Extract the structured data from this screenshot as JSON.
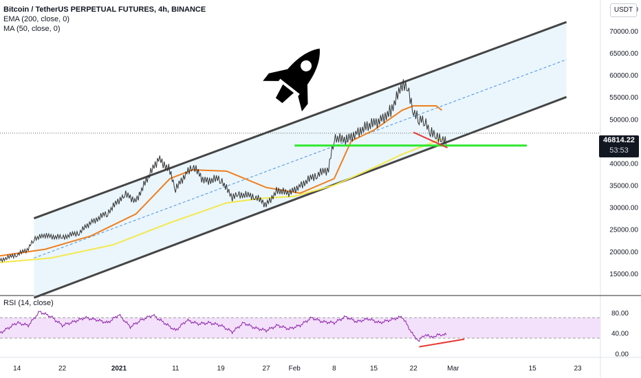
{
  "header": {
    "title": "Bitcoin / TetherUS PERPETUAL FUTURES, 4h, BINANCE",
    "ema": "EMA (200, close, 0)",
    "ma": "MA (50, close, 0)"
  },
  "currency_button": "USDT",
  "last_price": {
    "value": "46814.22",
    "countdown": "53:53"
  },
  "rsi_panel": {
    "label": "RSI (14, close)"
  },
  "icons": {
    "rocket": "rocket-icon"
  },
  "colors": {
    "candle_up": "#26a69a",
    "candle_dark": "#333333",
    "channel": "#454545",
    "channel_fill": "#e3f3fb",
    "ema": "#f4e84a",
    "ma": "#f07e1d",
    "support": "#2ee82e",
    "divergence": "#e53935",
    "rsi_line": "#8e24aa",
    "rsi_band": "#f3e1fb"
  },
  "chart_data": [
    {
      "type": "line",
      "name": "price",
      "ylim": [
        10000,
        77000
      ],
      "yticks": [
        15000,
        20000,
        25000,
        30000,
        35000,
        40000,
        45000,
        50000,
        55000,
        60000,
        65000,
        70000,
        75000
      ],
      "ytick_labels": [
        "15000.00",
        "20000.00",
        "25000.00",
        "30000.00",
        "35000.00",
        "40000.00",
        "45000.00",
        "50000.00",
        "55000.00",
        "60000.00",
        "65000.00",
        "70000.00",
        "75000.00"
      ],
      "x_axis": {
        "start": "2020-12-11",
        "end": "2021-03-27",
        "ticks": [
          {
            "date": "2020-12-14",
            "label": "14",
            "bold": false
          },
          {
            "date": "2020-12-22",
            "label": "22",
            "bold": false
          },
          {
            "date": "2021-01-01",
            "label": "2021",
            "bold": true
          },
          {
            "date": "2021-01-11",
            "label": "11",
            "bold": false
          },
          {
            "date": "2021-01-19",
            "label": "19",
            "bold": false
          },
          {
            "date": "2021-01-27",
            "label": "27",
            "bold": false
          },
          {
            "date": "2021-02-01",
            "label": "Feb",
            "bold": false
          },
          {
            "date": "2021-02-08",
            "label": "8",
            "bold": false
          },
          {
            "date": "2021-02-15",
            "label": "15",
            "bold": false
          },
          {
            "date": "2021-02-22",
            "label": "22",
            "bold": false
          },
          {
            "date": "2021-03-01",
            "label": "Mar",
            "bold": false
          },
          {
            "date": "2021-03-15",
            "label": "15",
            "bold": false
          },
          {
            "date": "2021-03-23",
            "label": "23",
            "bold": false
          }
        ]
      },
      "series": [
        {
          "key": "price",
          "x": [
            "2020-12-11",
            "2020-12-14",
            "2020-12-16",
            "2020-12-17",
            "2020-12-19",
            "2020-12-22",
            "2020-12-25",
            "2020-12-27",
            "2020-12-30",
            "2021-01-02",
            "2021-01-04",
            "2021-01-06",
            "2021-01-08",
            "2021-01-10",
            "2021-01-11",
            "2021-01-13",
            "2021-01-14",
            "2021-01-16",
            "2021-01-19",
            "2021-01-21",
            "2021-01-22",
            "2021-01-25",
            "2021-01-27",
            "2021-01-29",
            "2021-01-31",
            "2021-02-02",
            "2021-02-05",
            "2021-02-07",
            "2021-02-08",
            "2021-02-10",
            "2021-02-12",
            "2021-02-14",
            "2021-02-16",
            "2021-02-18",
            "2021-02-20",
            "2021-02-21",
            "2021-02-22",
            "2021-02-23",
            "2021-02-24",
            "2021-02-25",
            "2021-02-26",
            "2021-02-27",
            "2021-02-28"
          ],
          "y": [
            18000,
            19300,
            20500,
            23000,
            23500,
            23200,
            24300,
            26500,
            28800,
            33000,
            31500,
            36500,
            41000,
            38500,
            34000,
            38000,
            39500,
            36000,
            36500,
            32000,
            33000,
            32500,
            30500,
            34000,
            33000,
            35000,
            37500,
            38500,
            46000,
            45000,
            47000,
            48500,
            49500,
            52000,
            57500,
            57000,
            52000,
            49500,
            50000,
            47000,
            46000,
            46000,
            44000
          ]
        },
        {
          "key": "ema200",
          "x": [
            "2020-12-11",
            "2020-12-20",
            "2020-12-31",
            "2021-01-10",
            "2021-01-20",
            "2021-01-26",
            "2021-02-01",
            "2021-02-08",
            "2021-02-15",
            "2021-02-20",
            "2021-02-27"
          ],
          "y": [
            17500,
            18500,
            21500,
            26500,
            31000,
            32000,
            32500,
            35000,
            39000,
            42000,
            45500
          ]
        },
        {
          "key": "ma50",
          "x": [
            "2020-12-11",
            "2020-12-19",
            "2020-12-27",
            "2021-01-04",
            "2021-01-10",
            "2021-01-14",
            "2021-01-20",
            "2021-01-27",
            "2021-02-02",
            "2021-02-08",
            "2021-02-11",
            "2021-02-15",
            "2021-02-20",
            "2021-02-22",
            "2021-02-26",
            "2021-02-27"
          ],
          "y": [
            19000,
            20500,
            23500,
            28500,
            36500,
            38500,
            38200,
            34500,
            33200,
            36500,
            45000,
            47500,
            52000,
            53000,
            53000,
            52000
          ]
        }
      ],
      "channel": {
        "upper": [
          {
            "x": "2020-12-17",
            "y": 27500
          },
          {
            "x": "2021-03-21",
            "y": 72000
          }
        ],
        "lower": [
          {
            "x": "2020-12-17",
            "y": 9500
          },
          {
            "x": "2021-03-21",
            "y": 55000
          }
        ],
        "mid": [
          {
            "x": "2020-12-17",
            "y": 18500
          },
          {
            "x": "2021-03-21",
            "y": 63500
          }
        ]
      },
      "support_line": {
        "y": 44000,
        "x_start": "2021-02-01",
        "x_end": "2021-03-14"
      },
      "divergence_price": [
        {
          "x": "2021-02-22",
          "y": 47000
        },
        {
          "x": "2021-02-28",
          "y": 43500
        }
      ],
      "last_price": 46814.22
    },
    {
      "type": "line",
      "name": "rsi",
      "ylim": [
        -5,
        100
      ],
      "yticks": [
        0,
        40,
        80
      ],
      "ytick_labels": [
        "0.00",
        "40.00",
        "80.00"
      ],
      "band": [
        30,
        70
      ],
      "series": [
        {
          "key": "rsi",
          "x": [
            "2020-12-11",
            "2020-12-14",
            "2020-12-16",
            "2020-12-18",
            "2020-12-20",
            "2020-12-22",
            "2020-12-24",
            "2020-12-26",
            "2020-12-28",
            "2020-12-30",
            "2021-01-01",
            "2021-01-03",
            "2021-01-05",
            "2021-01-07",
            "2021-01-09",
            "2021-01-11",
            "2021-01-13",
            "2021-01-15",
            "2021-01-17",
            "2021-01-19",
            "2021-01-21",
            "2021-01-23",
            "2021-01-25",
            "2021-01-27",
            "2021-01-29",
            "2021-01-31",
            "2021-02-02",
            "2021-02-04",
            "2021-02-06",
            "2021-02-08",
            "2021-02-10",
            "2021-02-12",
            "2021-02-14",
            "2021-02-16",
            "2021-02-18",
            "2021-02-20",
            "2021-02-22",
            "2021-02-23",
            "2021-02-24",
            "2021-02-25",
            "2021-02-26",
            "2021-02-27",
            "2021-02-28"
          ],
          "y": [
            40,
            60,
            55,
            82,
            72,
            55,
            62,
            70,
            66,
            60,
            76,
            52,
            66,
            75,
            60,
            45,
            65,
            58,
            60,
            55,
            42,
            60,
            50,
            45,
            55,
            48,
            55,
            70,
            62,
            60,
            72,
            62,
            68,
            60,
            66,
            72,
            35,
            25,
            38,
            32,
            35,
            38,
            36
          ]
        }
      ],
      "divergence_rsi": [
        {
          "x": "2021-02-23",
          "y": 13
        },
        {
          "x": "2021-03-03",
          "y": 28
        }
      ]
    }
  ]
}
